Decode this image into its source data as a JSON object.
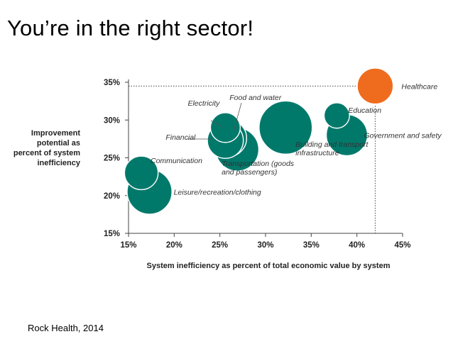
{
  "slide": {
    "title": "You’re in the right sector!",
    "source": "Rock Health, 2014"
  },
  "colors": {
    "bubble": "#00796b",
    "highlight": "#ef6c1e",
    "axis": "#444444",
    "leader": "#555555"
  },
  "chart_data": {
    "type": "scatter",
    "variant": "bubble",
    "xlabel": "System inefficiency as percent of total economic value by system",
    "ylabel": [
      "Improvement",
      "potential as",
      "percent of system",
      "inefficiency"
    ],
    "xlim": [
      15,
      45
    ],
    "ylim": [
      15,
      35
    ],
    "xticks": [
      {
        "value": 15,
        "label": "15%"
      },
      {
        "value": 20,
        "label": "20%"
      },
      {
        "value": 25,
        "label": "25%"
      },
      {
        "value": 30,
        "label": "30%"
      },
      {
        "value": 35,
        "label": "35%"
      },
      {
        "value": 40,
        "label": "40%"
      },
      {
        "value": 45,
        "label": "45%"
      }
    ],
    "yticks": [
      {
        "value": 15,
        "label": "15%"
      },
      {
        "value": 20,
        "label": "20%"
      },
      {
        "value": 25,
        "label": "25%"
      },
      {
        "value": 30,
        "label": "30%"
      },
      {
        "value": 35,
        "label": "35%"
      }
    ],
    "grid": false,
    "legend": "none",
    "reference": {
      "x": 42,
      "y": 34.5
    },
    "points": [
      {
        "key": "healthcare",
        "label": [
          "Healthcare"
        ],
        "x": 42,
        "y": 34.5,
        "size": 1.6,
        "highlight": true
      },
      {
        "key": "education",
        "label": [
          "Education"
        ],
        "x": 37.8,
        "y": 30.6,
        "size": 0.8
      },
      {
        "key": "government",
        "label": [
          "Government and safety"
        ],
        "x": 38.9,
        "y": 28.0,
        "size": 2.1
      },
      {
        "key": "building",
        "label": [
          "Building and transport",
          "infrastructure"
        ],
        "x": 32.2,
        "y": 29.0,
        "size": 3.5
      },
      {
        "key": "food",
        "label": [
          "Food and water"
        ],
        "x": 25.9,
        "y": 27.6,
        "size": 1.7
      },
      {
        "key": "transportation",
        "label": [
          "Transportation (goods",
          "and passengers)"
        ],
        "x": 26.9,
        "y": 26.1,
        "size": 2.3
      },
      {
        "key": "electricity",
        "label": [
          "Electricity"
        ],
        "x": 25.6,
        "y": 29.0,
        "size": 1.1
      },
      {
        "key": "financial",
        "label": [
          "Financial"
        ],
        "x": 25.6,
        "y": 27.3,
        "size": 1.6
      },
      {
        "key": "communication",
        "label": [
          "Communication"
        ],
        "x": 16.4,
        "y": 23.0,
        "size": 1.4
      },
      {
        "key": "leisure",
        "label": [
          "Leisure/recreation/clothing"
        ],
        "x": 17.3,
        "y": 20.5,
        "size": 2.5
      }
    ]
  }
}
